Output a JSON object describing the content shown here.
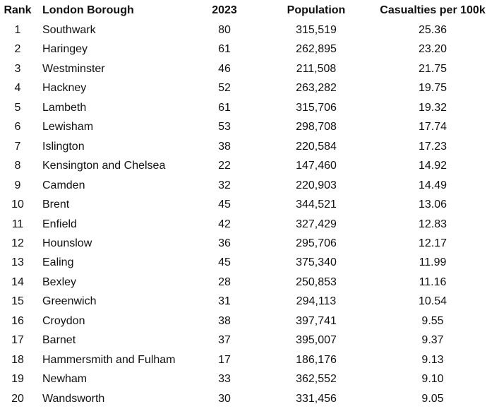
{
  "table": {
    "header": [
      "Rank",
      "London Borough",
      "2023",
      "Population",
      "Casualties per 100k"
    ],
    "rows": [
      [
        "1",
        "Southwark",
        "80",
        "315,519",
        "25.36"
      ],
      [
        "2",
        "Haringey",
        "61",
        "262,895",
        "23.20"
      ],
      [
        "3",
        "Westminster",
        "46",
        "211,508",
        "21.75"
      ],
      [
        "4",
        "Hackney",
        "52",
        "263,282",
        "19.75"
      ],
      [
        "5",
        "Lambeth",
        "61",
        "315,706",
        "19.32"
      ],
      [
        "6",
        "Lewisham",
        "53",
        "298,708",
        "17.74"
      ],
      [
        "7",
        "Islington",
        "38",
        "220,584",
        "17.23"
      ],
      [
        "8",
        "Kensington and Chelsea",
        "22",
        "147,460",
        "14.92"
      ],
      [
        "9",
        "Camden",
        "32",
        "220,903",
        "14.49"
      ],
      [
        "10",
        "Brent",
        "45",
        "344,521",
        "13.06"
      ],
      [
        "11",
        "Enfield",
        "42",
        "327,429",
        "12.83"
      ],
      [
        "12",
        "Hounslow",
        "36",
        "295,706",
        "12.17"
      ],
      [
        "13",
        "Ealing",
        "45",
        "375,340",
        "11.99"
      ],
      [
        "14",
        "Bexley",
        "28",
        "250,853",
        "11.16"
      ],
      [
        "15",
        "Greenwich",
        "31",
        "294,113",
        "10.54"
      ],
      [
        "16",
        "Croydon",
        "38",
        "397,741",
        "9.55"
      ],
      [
        "17",
        "Barnet",
        "37",
        "395,007",
        "9.37"
      ],
      [
        "18",
        "Hammersmith and Fulham",
        "17",
        "186,176",
        "9.13"
      ],
      [
        "19",
        "Newham",
        "33",
        "362,552",
        "9.10"
      ],
      [
        "20",
        "Wandsworth",
        "30",
        "331,456",
        "9.05"
      ]
    ]
  }
}
